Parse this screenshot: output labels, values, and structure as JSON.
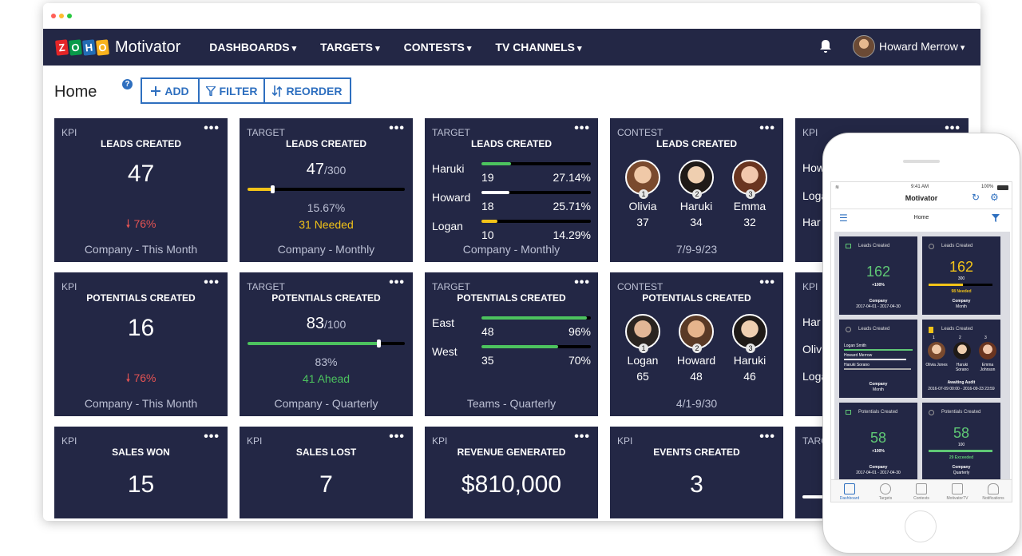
{
  "app": {
    "logo_letters": [
      "Z",
      "O",
      "H",
      "O"
    ],
    "logo_colors": [
      "#e42527",
      "#089949",
      "#226db4",
      "#f9b21d"
    ],
    "brand": "Motivator"
  },
  "nav": {
    "items": [
      "DASHBOARDS",
      "TARGETS",
      "CONTESTS",
      "TV CHANNELS"
    ],
    "user": "Howard Merrow"
  },
  "page": {
    "title": "Home",
    "add": "ADD",
    "filter": "FILTER",
    "reorder": "REORDER"
  },
  "cards": {
    "c1": {
      "type": "KPI",
      "title": "LEADS CREATED",
      "value": "47",
      "change": "76%",
      "footer": "Company - This Month"
    },
    "c2": {
      "type": "TARGET",
      "title": "LEADS CREATED",
      "value": "47",
      "target": "/300",
      "pct": "15.67%",
      "progress": 0.1567,
      "note": "31 Needed",
      "footer": "Company - Monthly"
    },
    "c3": {
      "type": "TARGET",
      "title": "LEADS CREATED",
      "rows": [
        {
          "name": "Haruki",
          "value": "19",
          "pct": "27.14%",
          "fill": 0.27
        },
        {
          "name": "Howard",
          "value": "18",
          "pct": "25.71%",
          "fill": 0.257
        },
        {
          "name": "Logan",
          "value": "10",
          "pct": "14.29%",
          "fill": 0.143
        }
      ],
      "footer": "Company - Monthly"
    },
    "c4": {
      "type": "CONTEST",
      "title": "LEADS CREATED",
      "people": [
        {
          "name": "Olivia",
          "value": "37",
          "rank": "1"
        },
        {
          "name": "Haruki",
          "value": "34",
          "rank": "2"
        },
        {
          "name": "Emma",
          "value": "32",
          "rank": "3"
        }
      ],
      "footer": "7/9-9/23"
    },
    "c5": {
      "type": "KPI",
      "rows": [
        "How",
        "Loga",
        "Har"
      ]
    },
    "c6": {
      "type": "KPI",
      "title": "POTENTIALS CREATED",
      "value": "16",
      "change": "76%",
      "footer": "Company - This Month"
    },
    "c7": {
      "type": "TARGET",
      "title": "POTENTIALS CREATED",
      "value": "83",
      "target": "/100",
      "pct": "83%",
      "progress": 0.83,
      "note": "41 Ahead",
      "footer": "Company - Quarterly"
    },
    "c8": {
      "type": "TARGET",
      "title": "POTENTIALS CREATED",
      "rows": [
        {
          "name": "East",
          "value": "48",
          "pct": "96%",
          "fill": 0.96
        },
        {
          "name": "West",
          "value": "35",
          "pct": "70%",
          "fill": 0.7
        }
      ],
      "footer": "Teams - Quarterly"
    },
    "c9": {
      "type": "CONTEST",
      "title": "POTENTIALS CREATED",
      "people": [
        {
          "name": "Logan",
          "value": "65",
          "rank": "1"
        },
        {
          "name": "Howard",
          "value": "48",
          "rank": "2"
        },
        {
          "name": "Haruki",
          "value": "46",
          "rank": "3"
        }
      ],
      "footer": "4/1-9/30"
    },
    "c10": {
      "type": "KPI",
      "rows": [
        "Har",
        "Olivi",
        "Loga"
      ]
    },
    "c11": {
      "type": "KPI",
      "title": "SALES WON",
      "value": "15"
    },
    "c12": {
      "type": "KPI",
      "title": "SALES LOST",
      "value": "7"
    },
    "c13": {
      "type": "KPI",
      "title": "REVENUE GENERATED",
      "value": "$810,000"
    },
    "c14": {
      "type": "KPI",
      "title": "EVENTS CREATED",
      "value": "3"
    },
    "c15": {
      "type": "TARG"
    }
  },
  "mobile": {
    "time": "9:41 AM",
    "battery": "100%",
    "title": "Motivator",
    "home": "Home",
    "cards": [
      {
        "title": "Leads Created",
        "value": "162",
        "sub": "+100%",
        "l1": "Company",
        "l2": "2017-04-01 - 2017-04-30"
      },
      {
        "title": "Leads Created",
        "value": "162",
        "sub": "300",
        "note": "98 Needed",
        "l1": "Company",
        "l2": "Month"
      },
      {
        "title": "Leads Created",
        "rows": [
          "Logan Smith",
          "Howard Merrow",
          "Haruki Sorano"
        ],
        "l1": "Company",
        "l2": "Month"
      },
      {
        "title": "Leads Created",
        "people": [
          "Olivia Jones",
          "Haruki Sorano",
          "Emma Johnson"
        ],
        "ranks": [
          "1",
          "2",
          "3"
        ],
        "l1": "Awaiting Audit",
        "l2": "2016-07-09 00:00 - 2016-09-23 23:59"
      },
      {
        "title": "Potentials Created",
        "value": "58",
        "sub": "+100%",
        "l1": "Company",
        "l2": "2017-04-01 - 2017-04-30"
      },
      {
        "title": "Potentials Created",
        "value": "58",
        "sub": "100",
        "note": "29 Exceeded",
        "l1": "Company",
        "l2": "Quarterly"
      }
    ],
    "tabs": [
      "Dashboard",
      "Targets",
      "Contests",
      "MotivatorTV",
      "Notifications"
    ]
  }
}
